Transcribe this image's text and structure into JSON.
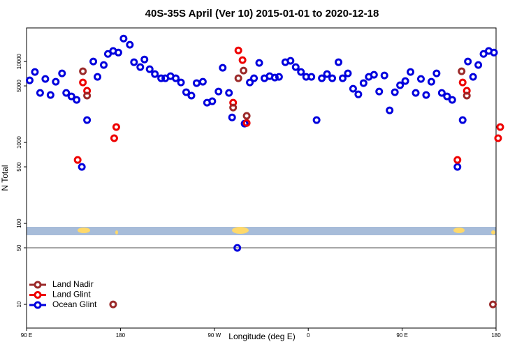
{
  "chart_data": {
    "type": "scatter",
    "title": "40S-35S April (Ver 10)   2015-01-01 to 2020-12-18",
    "xlabel": "Longitude (deg E)",
    "ylabel": "N Total",
    "xlim": [
      90,
      540
    ],
    "xticks": [
      {
        "value": 90,
        "label": "90 E"
      },
      180,
      {
        "value": 270,
        "label": "90 W"
      },
      {
        "value": 360,
        "label": "0"
      },
      {
        "value": 450,
        "label": "90 E"
      },
      {
        "value": 540,
        "label": "180"
      }
    ],
    "ylim": [
      5.1,
      26000
    ],
    "yticks": [
      10,
      50,
      100,
      500,
      1000,
      5000,
      10000
    ],
    "log_y": true,
    "hline": 50,
    "legend": "bottom-left",
    "series": [
      {
        "name": "Ocean Glint",
        "color": "#0000dd",
        "x": [
          93,
          98,
          103,
          108,
          113,
          118,
          124,
          128,
          133,
          138,
          143,
          148,
          154,
          158,
          164,
          168,
          173,
          178,
          183,
          189,
          193,
          199,
          203,
          208,
          213,
          219,
          223,
          228,
          233,
          238,
          243,
          248,
          253,
          259,
          263,
          268,
          274,
          278,
          284,
          287,
          292,
          299,
          304,
          308,
          313,
          318,
          323,
          328,
          332,
          338,
          343,
          348,
          353,
          358,
          363,
          368,
          373,
          378,
          383,
          389,
          393,
          398,
          403,
          408,
          413,
          418,
          423,
          428,
          433,
          438,
          443,
          448,
          453,
          458,
          463,
          468,
          473,
          478,
          483,
          488,
          493,
          498,
          503,
          508,
          513,
          518,
          523,
          528,
          533,
          538
        ],
        "values": [
          5850,
          7430,
          4090,
          6090,
          3860,
          5620,
          7130,
          4090,
          3710,
          3360,
          499,
          1890,
          10000,
          6460,
          9060,
          12400,
          13500,
          12900,
          19200,
          16100,
          9800,
          8530,
          10600,
          8040,
          7000,
          6210,
          6210,
          6590,
          6210,
          5510,
          4180,
          3790,
          5410,
          5620,
          3100,
          3230,
          4260,
          8360,
          4090,
          2040,
          49.9,
          1710,
          5510,
          6210,
          9620,
          6210,
          6590,
          6340,
          6460,
          9800,
          10200,
          8530,
          7430,
          6460,
          6460,
          1890,
          6210,
          7000,
          6210,
          9800,
          6210,
          7130,
          4610,
          3930,
          5410,
          6460,
          6860,
          4260,
          6730,
          2490,
          4180,
          5090,
          5740,
          7430,
          4090,
          6090,
          3860,
          5620,
          7130,
          4090,
          3710,
          3360,
          499,
          1890,
          10000,
          6460,
          9060,
          12400,
          13500,
          12900
        ]
      },
      {
        "name": "Land Glint",
        "color": "#ee0000",
        "x": [
          139,
          144,
          148,
          174,
          176,
          288,
          293,
          297,
          301,
          503,
          508,
          512,
          542,
          544
        ],
        "values": [
          608,
          5510,
          4350,
          1130,
          1550,
          3100,
          13700,
          10400,
          1740,
          608,
          5510,
          4350,
          1130,
          1550
        ]
      },
      {
        "name": "Land Nadir",
        "color": "#9b2a2a",
        "x": [
          144,
          148,
          173,
          288,
          293,
          298,
          301,
          507,
          512,
          537
        ],
        "values": [
          7570,
          3790,
          10,
          2700,
          6210,
          7730,
          2130,
          7570,
          3790,
          10
        ]
      }
    ]
  }
}
